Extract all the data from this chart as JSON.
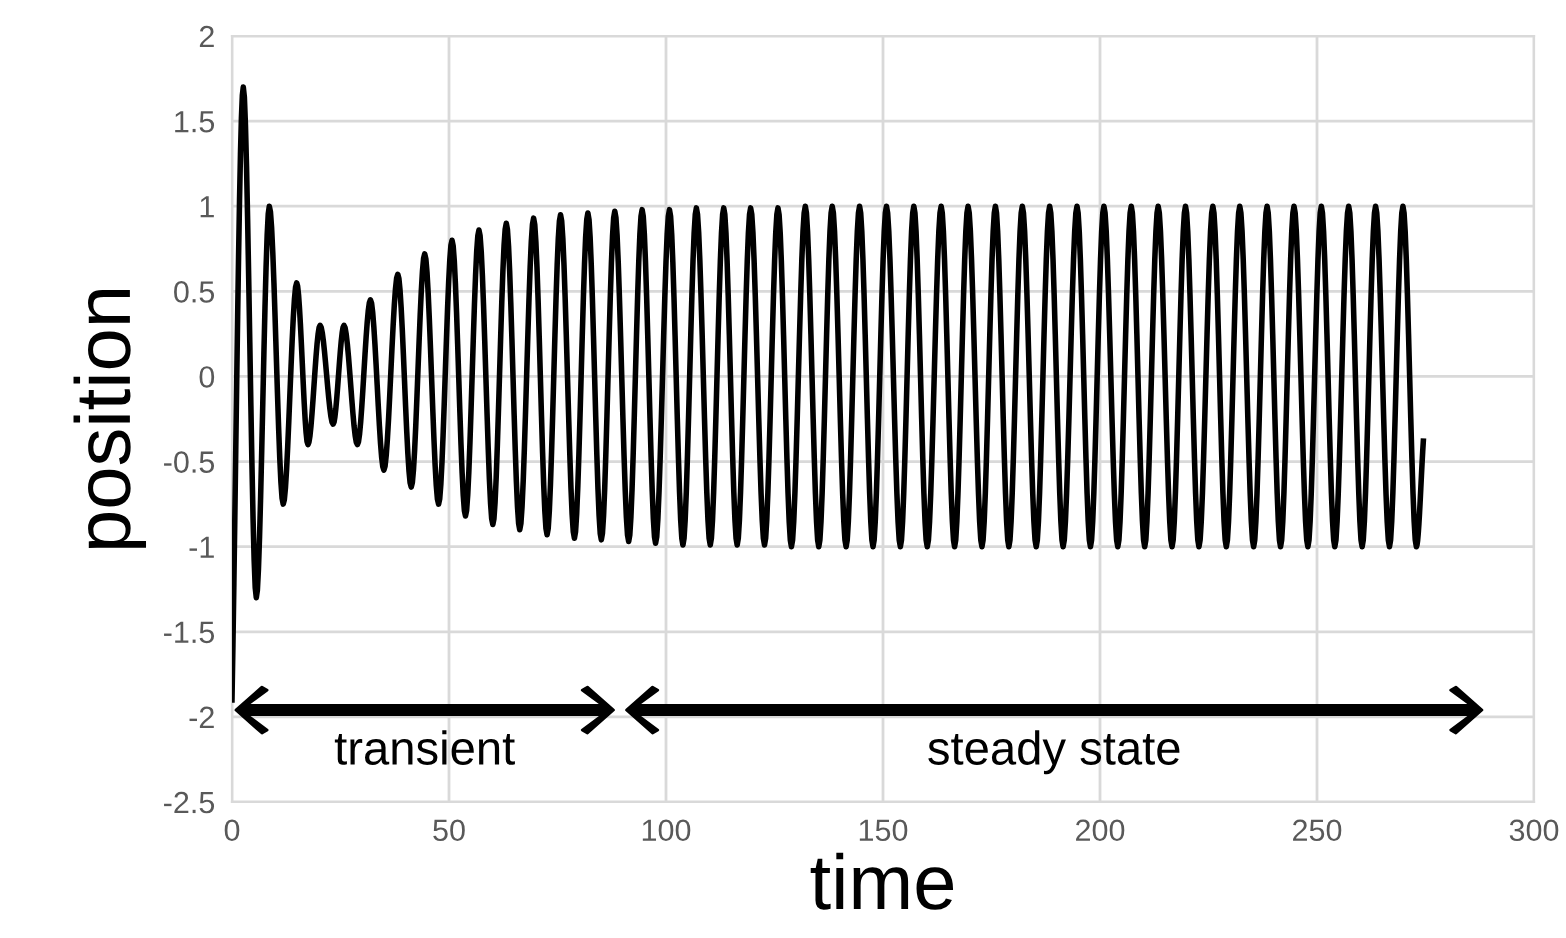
{
  "chart_data": {
    "type": "line",
    "xlabel": "time",
    "ylabel": "position",
    "xlim": [
      0,
      300
    ],
    "xticks": [
      0,
      50,
      100,
      150,
      200,
      250,
      300
    ],
    "ylim": [
      -2.5,
      2
    ],
    "yticks": [
      -2.5,
      -2,
      -1.5,
      -1,
      -0.5,
      0,
      0.5,
      1,
      1.5,
      2
    ],
    "grid": true,
    "line_style": "solid",
    "marker": "none",
    "annotations": [
      "transient",
      "steady state"
    ],
    "series": [
      {
        "color": "#000000",
        "x": [
          0,
          2.6,
          5.6,
          8.6,
          11.8,
          14.9,
          17.5,
          20.3,
          23.3,
          25.8,
          28.9,
          31.9,
          35.0,
          38.2,
          41.3,
          44.4,
          47.6,
          50.7,
          53.8,
          56.9,
          60.1,
          63.2,
          66.3,
          69.5,
          72.6,
          75.7,
          78.9,
          82.0,
          85.1,
          88.2,
          91.4,
          94.5,
          97.6,
          100.8,
          103.9,
          107.0,
          110.2,
          113.3,
          116.4,
          119.5,
          122.7,
          125.8,
          128.9,
          132.1,
          135.2,
          138.3,
          141.5,
          144.6,
          147.7,
          150.8,
          154.0,
          157.1,
          160.2,
          163.4,
          166.5,
          169.6,
          172.8,
          175.9,
          179.0,
          182.1,
          185.3,
          188.4,
          191.5,
          194.7,
          197.8,
          200.9,
          204.1,
          207.2,
          210.3,
          213.4,
          216.6,
          219.7,
          222.8,
          226.0,
          229.1,
          232.2,
          235.4,
          238.5,
          241.6,
          244.7,
          247.9,
          251.0,
          254.1,
          257.3,
          260.4,
          263.5,
          266.7,
          269.8,
          272.9,
          274.5
        ],
        "values": [
          -1.9,
          1.7,
          -1.3,
          1.0,
          -0.75,
          0.55,
          -0.4,
          0.3,
          -0.28,
          0.3,
          -0.4,
          0.45,
          -0.55,
          0.6,
          -0.65,
          0.72,
          -0.75,
          0.8,
          -0.82,
          0.86,
          -0.87,
          0.9,
          -0.9,
          0.93,
          -0.93,
          0.95,
          -0.95,
          0.96,
          -0.96,
          0.97,
          -0.97,
          0.98,
          -0.98,
          0.98,
          -0.99,
          0.99,
          -0.99,
          0.99,
          -0.99,
          0.99,
          -0.99,
          0.99,
          -1.0,
          1.0,
          -1.0,
          1.0,
          -1.0,
          1.0,
          -1.0,
          1.0,
          -1.0,
          1.0,
          -1.0,
          1.0,
          -1.0,
          1.0,
          -1.0,
          1.0,
          -1.0,
          1.0,
          -1.0,
          1.0,
          -1.0,
          1.0,
          -1.0,
          1.0,
          -1.0,
          1.0,
          -1.0,
          1.0,
          -1.0,
          1.0,
          -1.0,
          1.0,
          -1.0,
          1.0,
          -1.0,
          1.0,
          -1.0,
          1.0,
          -1.0,
          1.0,
          -1.0,
          1.0,
          -1.0,
          1.0,
          -1.0,
          1.0,
          -1.0,
          -0.38
        ]
      }
    ]
  }
}
